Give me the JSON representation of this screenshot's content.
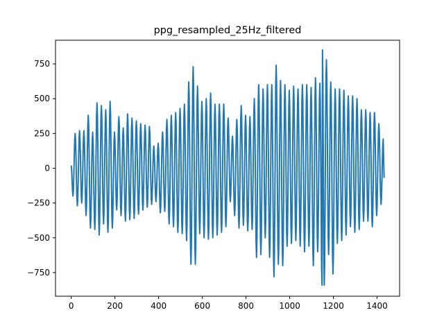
{
  "chart_data": {
    "type": "line",
    "title": "ppg_resampled_25Hz_filtered",
    "xlabel": "",
    "ylabel": "",
    "xlim": [
      -72,
      1503
    ],
    "ylim": [
      -920,
      920
    ],
    "grid": false,
    "x_ticks": [
      0,
      200,
      400,
      600,
      800,
      1000,
      1200,
      1400
    ],
    "y_ticks": [
      -750,
      -500,
      -250,
      0,
      250,
      500,
      750
    ],
    "x_tick_labels": [
      "0",
      "200",
      "400",
      "600",
      "800",
      "1000",
      "1200",
      "1400"
    ],
    "y_tick_labels": [
      "−750",
      "−500",
      "−250",
      "0",
      "250",
      "500",
      "750"
    ],
    "series": [
      {
        "color": "#1f77b4",
        "sampling_step": 2,
        "n_points": 1432,
        "period": 19.6,
        "phase_offset": -8,
        "extrema_envelope": [
          [
            0,
            20
          ],
          [
            8,
            -200
          ],
          [
            18,
            250
          ],
          [
            28,
            -270
          ],
          [
            38,
            270
          ],
          [
            48,
            -250
          ],
          [
            58,
            270
          ],
          [
            68,
            -340
          ],
          [
            78,
            380
          ],
          [
            88,
            -430
          ],
          [
            98,
            260
          ],
          [
            108,
            -440
          ],
          [
            118,
            470
          ],
          [
            128,
            -480
          ],
          [
            138,
            450
          ],
          [
            148,
            -400
          ],
          [
            158,
            420
          ],
          [
            168,
            -460
          ],
          [
            178,
            480
          ],
          [
            188,
            -430
          ],
          [
            198,
            260
          ],
          [
            208,
            -300
          ],
          [
            218,
            370
          ],
          [
            228,
            -340
          ],
          [
            238,
            290
          ],
          [
            248,
            -380
          ],
          [
            258,
            390
          ],
          [
            268,
            -370
          ],
          [
            278,
            360
          ],
          [
            288,
            -360
          ],
          [
            298,
            340
          ],
          [
            308,
            -330
          ],
          [
            318,
            320
          ],
          [
            328,
            -300
          ],
          [
            338,
            310
          ],
          [
            348,
            -280
          ],
          [
            358,
            300
          ],
          [
            368,
            -260
          ],
          [
            378,
            160
          ],
          [
            388,
            -240
          ],
          [
            398,
            180
          ],
          [
            408,
            -320
          ],
          [
            418,
            260
          ],
          [
            428,
            -310
          ],
          [
            438,
            350
          ],
          [
            448,
            -400
          ],
          [
            458,
            380
          ],
          [
            468,
            -420
          ],
          [
            478,
            400
          ],
          [
            488,
            -460
          ],
          [
            498,
            430
          ],
          [
            508,
            -470
          ],
          [
            518,
            460
          ],
          [
            528,
            -520
          ],
          [
            538,
            620
          ],
          [
            548,
            -690
          ],
          [
            558,
            730
          ],
          [
            568,
            -690
          ],
          [
            578,
            590
          ],
          [
            588,
            -470
          ],
          [
            598,
            480
          ],
          [
            608,
            -500
          ],
          [
            618,
            500
          ],
          [
            628,
            -510
          ],
          [
            638,
            540
          ],
          [
            648,
            -500
          ],
          [
            658,
            460
          ],
          [
            668,
            -480
          ],
          [
            678,
            460
          ],
          [
            688,
            -460
          ],
          [
            698,
            460
          ],
          [
            708,
            -420
          ],
          [
            718,
            360
          ],
          [
            728,
            -240
          ],
          [
            738,
            230
          ],
          [
            748,
            -340
          ],
          [
            758,
            350
          ],
          [
            768,
            -430
          ],
          [
            778,
            450
          ],
          [
            788,
            -410
          ],
          [
            798,
            380
          ],
          [
            808,
            -450
          ],
          [
            818,
            370
          ],
          [
            828,
            -440
          ],
          [
            838,
            500
          ],
          [
            848,
            -640
          ],
          [
            858,
            600
          ],
          [
            868,
            -620
          ],
          [
            878,
            570
          ],
          [
            888,
            -500
          ],
          [
            898,
            600
          ],
          [
            908,
            -640
          ],
          [
            918,
            600
          ],
          [
            928,
            -780
          ],
          [
            938,
            740
          ],
          [
            948,
            -690
          ],
          [
            958,
            630
          ],
          [
            968,
            -700
          ],
          [
            978,
            600
          ],
          [
            988,
            -560
          ],
          [
            998,
            560
          ],
          [
            1008,
            -540
          ],
          [
            1018,
            590
          ],
          [
            1028,
            -520
          ],
          [
            1038,
            570
          ],
          [
            1048,
            -560
          ],
          [
            1058,
            600
          ],
          [
            1068,
            -600
          ],
          [
            1078,
            600
          ],
          [
            1088,
            -560
          ],
          [
            1098,
            580
          ],
          [
            1108,
            -700
          ],
          [
            1118,
            650
          ],
          [
            1128,
            -600
          ],
          [
            1138,
            610
          ],
          [
            1148,
            -840
          ],
          [
            1150,
            850
          ],
          [
            1158,
            -840
          ],
          [
            1168,
            780
          ],
          [
            1178,
            -620
          ],
          [
            1188,
            620
          ],
          [
            1198,
            -760
          ],
          [
            1208,
            570
          ],
          [
            1218,
            -540
          ],
          [
            1228,
            570
          ],
          [
            1238,
            -520
          ],
          [
            1248,
            560
          ],
          [
            1258,
            -480
          ],
          [
            1268,
            520
          ],
          [
            1278,
            -420
          ],
          [
            1288,
            520
          ],
          [
            1298,
            -460
          ],
          [
            1308,
            500
          ],
          [
            1318,
            -440
          ],
          [
            1328,
            420
          ],
          [
            1338,
            -380
          ],
          [
            1348,
            420
          ],
          [
            1358,
            -380
          ],
          [
            1368,
            400
          ],
          [
            1378,
            -420
          ],
          [
            1388,
            400
          ],
          [
            1398,
            -340
          ],
          [
            1408,
            320
          ],
          [
            1418,
            -260
          ],
          [
            1428,
            210
          ],
          [
            1432,
            -70
          ]
        ]
      }
    ]
  }
}
